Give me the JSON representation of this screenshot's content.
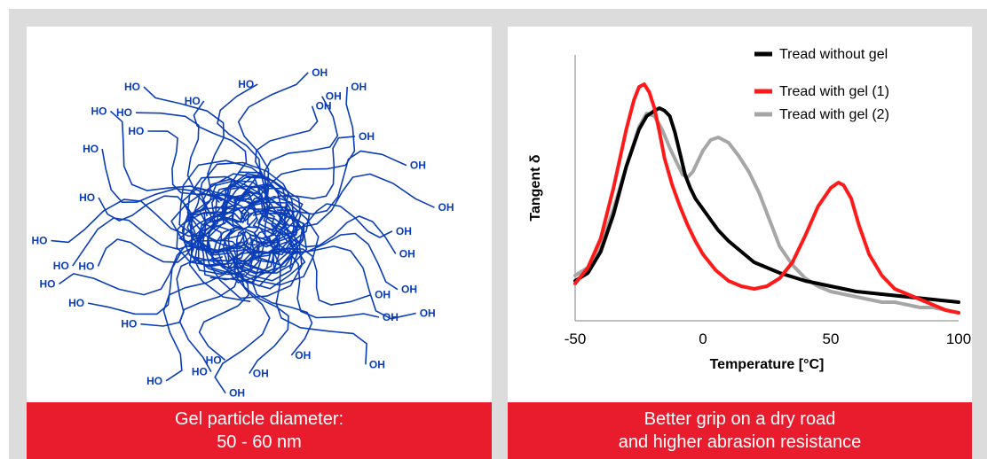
{
  "header": {
    "title": ""
  },
  "left_panel": {
    "caption_line1": "Gel particle diameter:",
    "caption_line2": "50 - 60 nm",
    "group_label": "OH",
    "group_label_alt": "HO",
    "chain_color": "#0a3db8"
  },
  "right_panel": {
    "caption_line1": "Better grip on a dry road",
    "caption_line2": "and higher abrasion resistance"
  },
  "colors": {
    "accent": "#e81c2d",
    "background": "#dcdcdc"
  },
  "chart_data": {
    "type": "line",
    "xlabel": "Temperature [°C]",
    "ylabel": "Tangent δ",
    "xlim": [
      -50,
      100
    ],
    "ylim": [
      0,
      1.0
    ],
    "xticks": [
      -50,
      0,
      50,
      100
    ],
    "grid": false,
    "legend_position": "top-right",
    "series": [
      {
        "name": "Tread without gel",
        "color": "#000000",
        "x": [
          -50,
          -45,
          -40,
          -35,
          -30,
          -25,
          -22,
          -19,
          -17,
          -15,
          -13,
          -11,
          -9,
          -7,
          -5,
          -3,
          0,
          3,
          6,
          10,
          15,
          20,
          30,
          40,
          50,
          60,
          70,
          80,
          90,
          100
        ],
        "y": [
          0.15,
          0.18,
          0.26,
          0.4,
          0.58,
          0.72,
          0.77,
          0.79,
          0.8,
          0.79,
          0.77,
          0.71,
          0.63,
          0.55,
          0.5,
          0.46,
          0.42,
          0.38,
          0.34,
          0.3,
          0.26,
          0.22,
          0.18,
          0.15,
          0.13,
          0.11,
          0.1,
          0.09,
          0.08,
          0.07
        ]
      },
      {
        "name": "Tread with gel (1)",
        "color": "#ff1a1a",
        "x": [
          -50,
          -45,
          -40,
          -35,
          -30,
          -27,
          -25,
          -23,
          -21,
          -19,
          -17,
          -15,
          -12,
          -9,
          -6,
          -3,
          0,
          5,
          10,
          15,
          20,
          25,
          30,
          35,
          40,
          45,
          50,
          53,
          55,
          58,
          61,
          65,
          70,
          75,
          80,
          85,
          90,
          95,
          100
        ],
        "y": [
          0.14,
          0.2,
          0.31,
          0.5,
          0.72,
          0.83,
          0.88,
          0.89,
          0.86,
          0.8,
          0.71,
          0.61,
          0.51,
          0.43,
          0.36,
          0.3,
          0.25,
          0.19,
          0.15,
          0.13,
          0.12,
          0.13,
          0.16,
          0.22,
          0.32,
          0.43,
          0.5,
          0.52,
          0.51,
          0.46,
          0.36,
          0.25,
          0.17,
          0.12,
          0.1,
          0.08,
          0.06,
          0.04,
          0.03
        ]
      },
      {
        "name": "Tread with gel (2)",
        "color": "#a6a6a6",
        "x": [
          -50,
          -45,
          -40,
          -35,
          -30,
          -25,
          -22,
          -19,
          -16,
          -13,
          -10,
          -8,
          -6,
          -4,
          -2,
          0,
          3,
          6,
          10,
          14,
          18,
          22,
          26,
          30,
          35,
          40,
          45,
          50,
          55,
          60,
          65,
          70,
          75,
          80,
          85,
          90,
          95,
          100
        ],
        "y": [
          0.17,
          0.2,
          0.28,
          0.42,
          0.58,
          0.73,
          0.78,
          0.77,
          0.72,
          0.65,
          0.59,
          0.55,
          0.54,
          0.56,
          0.6,
          0.64,
          0.68,
          0.69,
          0.67,
          0.62,
          0.56,
          0.48,
          0.38,
          0.28,
          0.21,
          0.16,
          0.13,
          0.11,
          0.1,
          0.09,
          0.08,
          0.07,
          0.07,
          0.06,
          0.05,
          0.05,
          0.04,
          0.03
        ]
      }
    ]
  }
}
